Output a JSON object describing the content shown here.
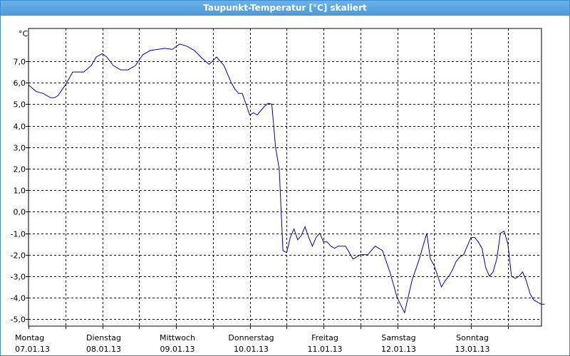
{
  "window": {
    "title": "Taupunkt-Temperatur [°C] skaliert"
  },
  "chart_data": {
    "type": "line",
    "title": "Taupunkt-Temperatur [°C] skaliert",
    "ylabel": "°C",
    "xlabel": "",
    "ylim": [
      -5.3,
      8.6
    ],
    "yticks": [
      7.0,
      6.0,
      5.0,
      4.0,
      3.0,
      2.0,
      1.0,
      0.0,
      -1.0,
      -2.0,
      -3.0,
      -4.0,
      -5.0
    ],
    "ytick_labels": [
      "7,0",
      "6,0",
      "5,0",
      "4,0",
      "3,0",
      "2,0",
      "1,0",
      "0,0",
      "-1,0",
      "-2,0",
      "-3,0",
      "-4,0",
      "-5,0"
    ],
    "xlim": [
      0,
      7
    ],
    "x_ticks": [
      {
        "day": "Montag",
        "date": "07.01.13"
      },
      {
        "day": "Dienstag",
        "date": "08.01.13"
      },
      {
        "day": "Mittwoch",
        "date": "09.01.13"
      },
      {
        "day": "Donnerstag",
        "date": "10.01.13"
      },
      {
        "day": "Freitag",
        "date": "11.01.13"
      },
      {
        "day": "Samstag",
        "date": "12.01.13"
      },
      {
        "day": "Sonntag",
        "date": "13.01.13"
      }
    ],
    "grid": true,
    "line_color": "#0000aa",
    "series": [
      {
        "x": [
          0,
          0.1,
          0.2,
          0.3,
          0.35,
          0.4,
          0.5,
          0.6,
          0.65,
          0.75,
          0.85,
          0.92,
          1.0,
          1.06,
          1.15,
          1.25,
          1.35,
          1.45,
          1.55,
          1.65,
          1.75,
          1.85,
          1.95,
          2.05,
          2.15,
          2.25,
          2.35,
          2.45,
          2.55,
          2.65,
          2.75,
          2.8,
          2.85,
          2.9,
          2.95,
          3.0,
          3.05,
          3.1,
          3.15,
          3.2,
          3.25,
          3.3,
          3.35,
          3.4,
          3.45,
          3.5,
          3.55,
          3.6,
          3.65,
          3.7,
          3.75,
          3.8,
          3.85,
          3.9,
          3.95,
          4.0,
          4.05,
          4.1,
          4.15,
          4.2,
          4.25,
          4.3,
          4.4,
          4.5,
          4.6,
          4.7,
          4.8,
          4.9,
          5.0,
          5.1,
          5.2,
          5.3,
          5.4,
          5.45,
          5.5,
          5.6,
          5.65,
          5.7,
          5.75,
          5.8,
          5.85,
          5.9,
          5.95,
          6.0,
          6.05,
          6.1,
          6.15,
          6.2,
          6.25,
          6.3,
          6.35,
          6.4,
          6.45,
          6.5,
          6.55,
          6.6,
          6.65,
          6.7,
          6.75,
          6.8,
          6.85,
          6.9,
          6.95,
          7.0
        ],
        "y": [
          5.9,
          5.6,
          5.5,
          5.3,
          5.3,
          5.4,
          5.9,
          6.5,
          6.5,
          6.5,
          6.8,
          7.2,
          7.35,
          7.2,
          6.8,
          6.6,
          6.6,
          6.8,
          7.3,
          7.5,
          7.55,
          7.6,
          7.55,
          7.8,
          7.7,
          7.5,
          7.15,
          6.85,
          7.2,
          6.8,
          6.0,
          5.7,
          5.5,
          5.5,
          5.0,
          4.5,
          4.6,
          4.5,
          4.7,
          4.9,
          5.05,
          5.0,
          3.0,
          2.0,
          -1.8,
          -1.9,
          -1.2,
          -0.8,
          -1.3,
          -1.1,
          -0.7,
          -1.2,
          -1.6,
          -1.2,
          -1.0,
          -1.4,
          -1.4,
          -1.6,
          -1.7,
          -1.6,
          -1.6,
          -1.6,
          -2.2,
          -2.0,
          -2.0,
          -1.6,
          -1.8,
          -2.8,
          -4.0,
          -4.7,
          -3.2,
          -2.2,
          -1.0,
          -2.2,
          -2.5,
          -3.5,
          -3.2,
          -3.0,
          -2.7,
          -2.3,
          -2.1,
          -2.0,
          -1.6,
          -1.2,
          -1.2,
          -1.4,
          -1.7,
          -2.6,
          -3.0,
          -2.8,
          -2.2,
          -1.0,
          -0.9,
          -1.5,
          -3.0,
          -3.1,
          -3.0,
          -2.8,
          -3.2,
          -3.8,
          -4.1,
          -4.2,
          -4.3,
          -4.3
        ]
      }
    ]
  }
}
